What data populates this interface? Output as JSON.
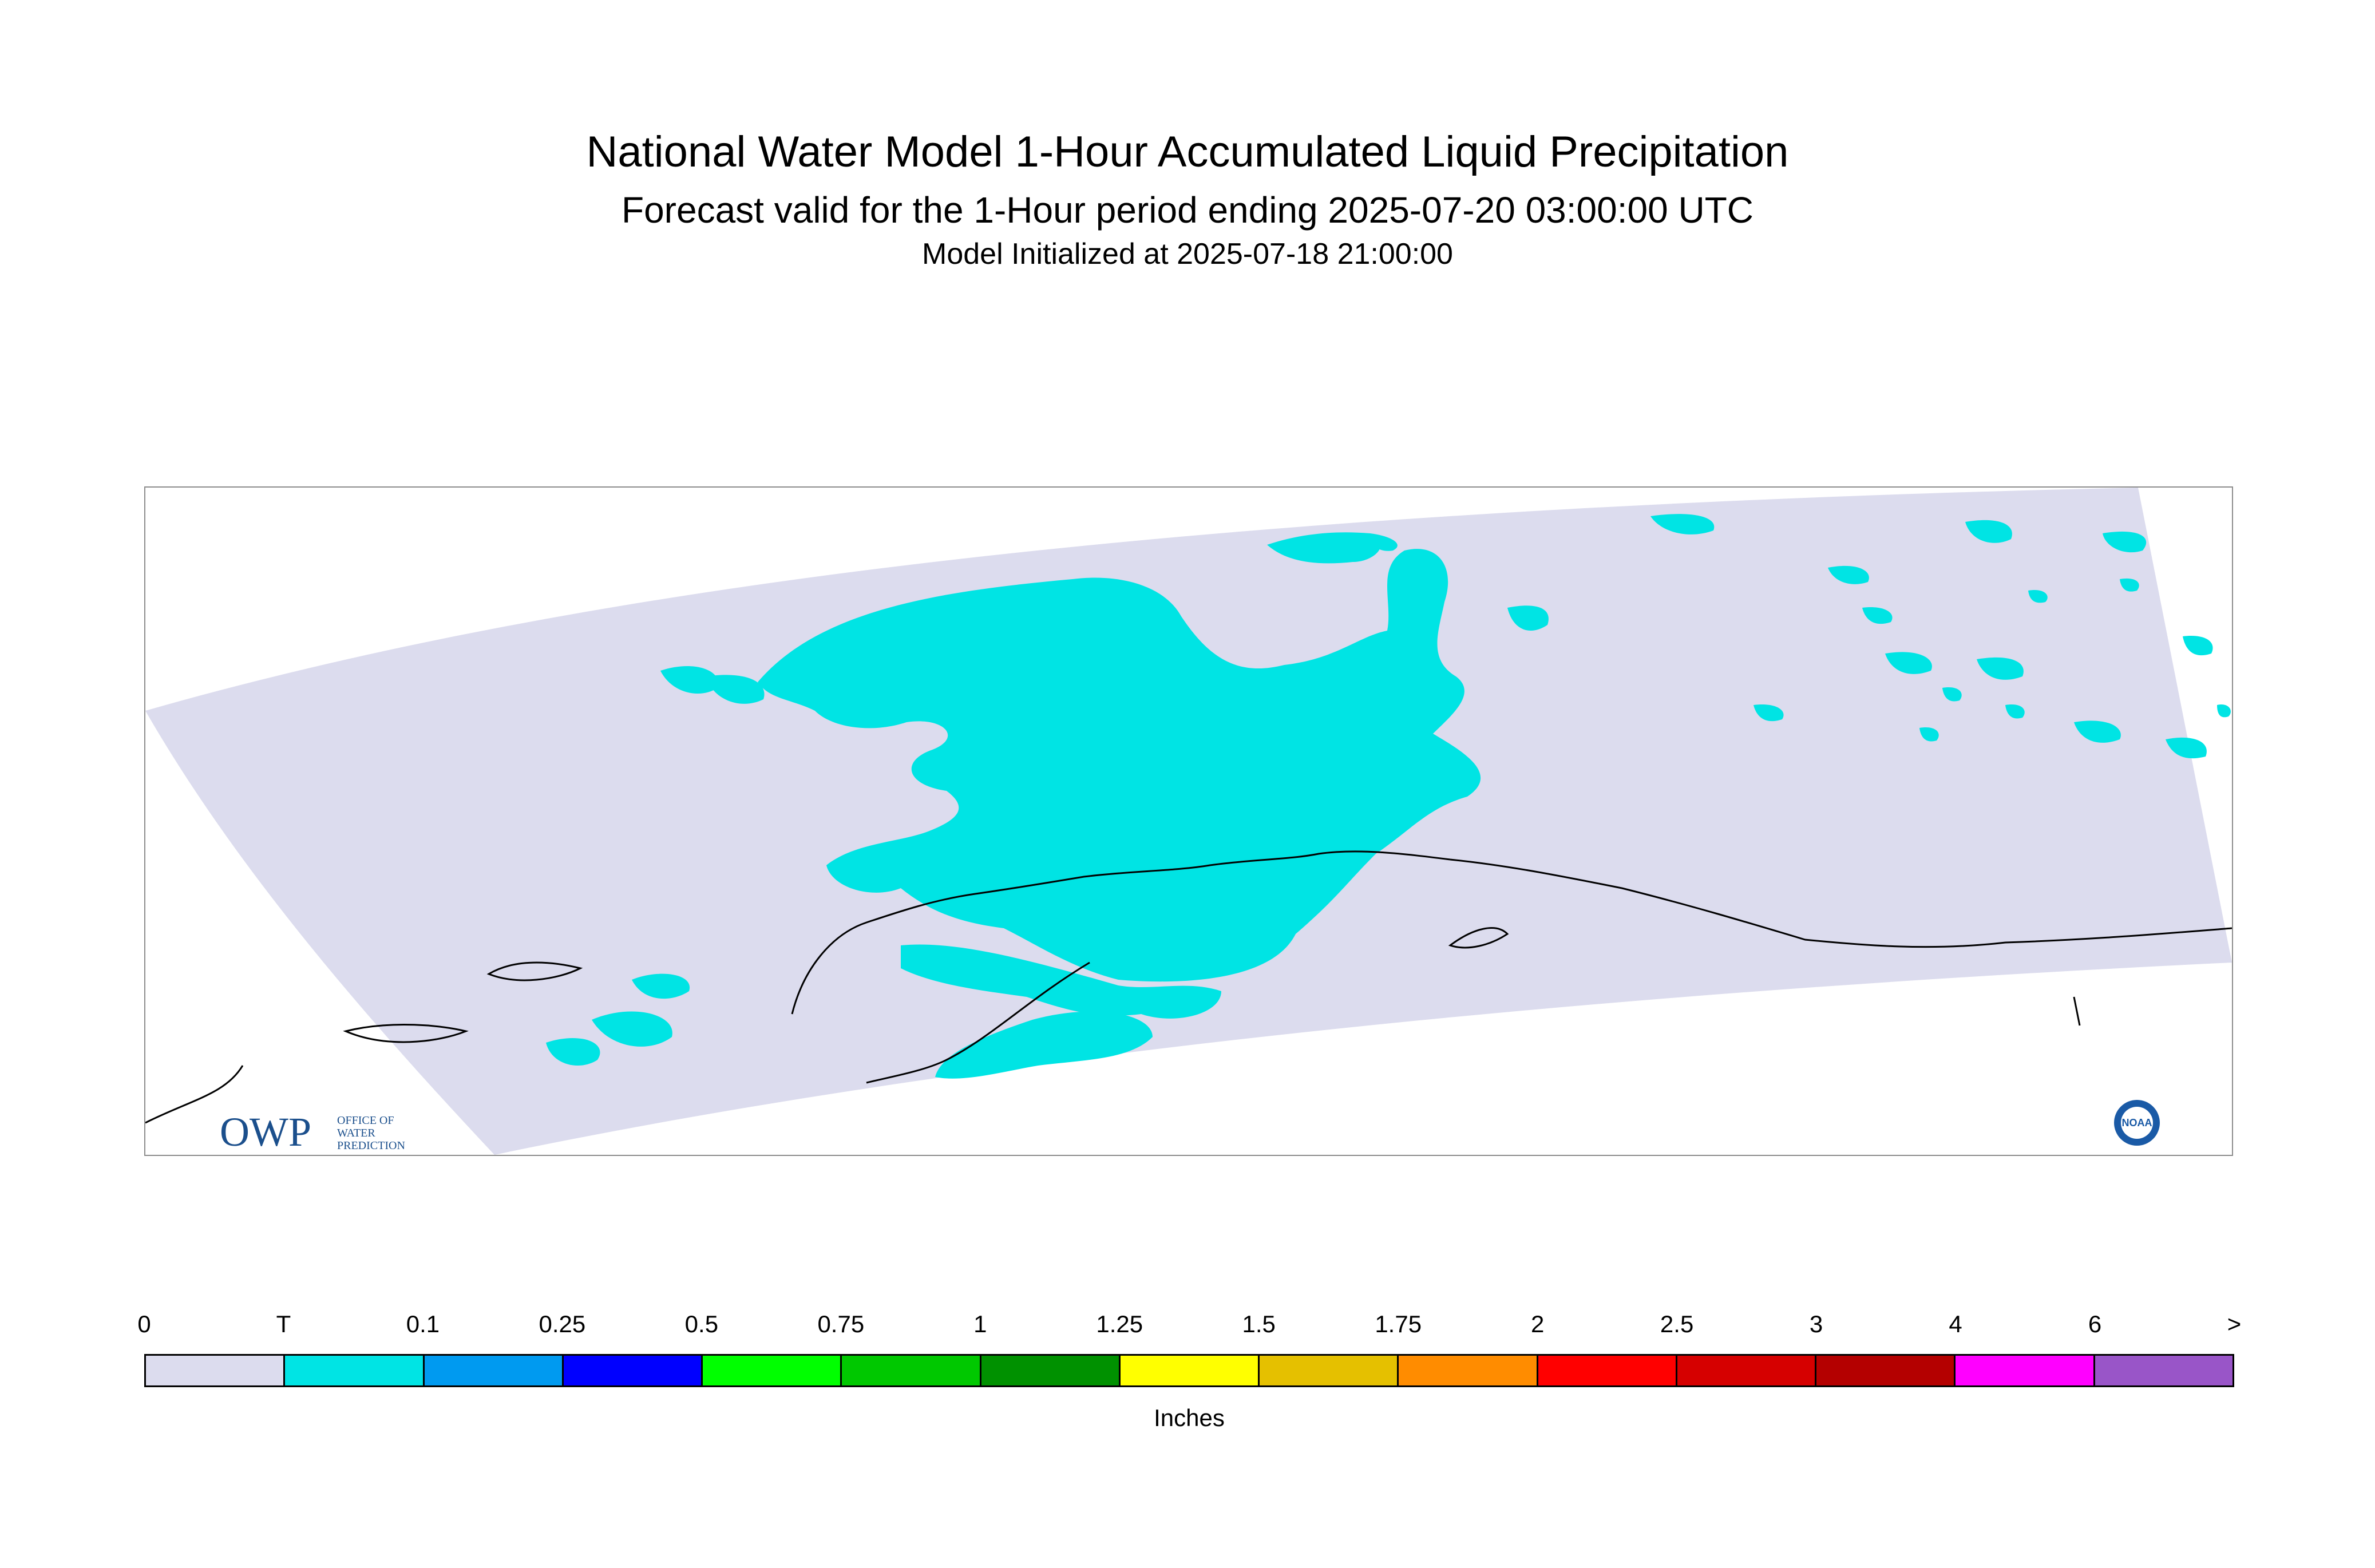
{
  "header": {
    "title": "National Water Model 1-Hour Accumulated Liquid Precipitation",
    "subtitle": "Forecast valid for the 1-Hour period ending 2025-07-20 03:00:00 UTC",
    "init": "Model Initialized at 2025-07-18 21:00:00"
  },
  "map": {
    "region_color": "#dcdcee",
    "precip_color": "#00e4e4",
    "coast_color": "#000000",
    "owp_logo": {
      "letters": "OWP",
      "line1": "OFFICE OF",
      "line2": "WATER",
      "line3": "PREDICTION",
      "color": "#1b4f8c"
    },
    "noaa_logo": {
      "text": "NOAA",
      "color": "#1a5aa6"
    }
  },
  "legend": {
    "labels": [
      "0",
      "T",
      "0.1",
      "0.25",
      "0.5",
      "0.75",
      "1",
      "1.25",
      "1.5",
      "1.75",
      "2",
      "2.5",
      "3",
      "4",
      "6",
      ">"
    ],
    "colors": [
      "#dcdcee",
      "#00e4e4",
      "#009af0",
      "#0000ff",
      "#00ff00",
      "#00c800",
      "#009100",
      "#ffff00",
      "#e5c000",
      "#ff8c00",
      "#ff0000",
      "#d60000",
      "#b40000",
      "#ff00ff",
      "#9955c8"
    ],
    "units": "Inches"
  }
}
